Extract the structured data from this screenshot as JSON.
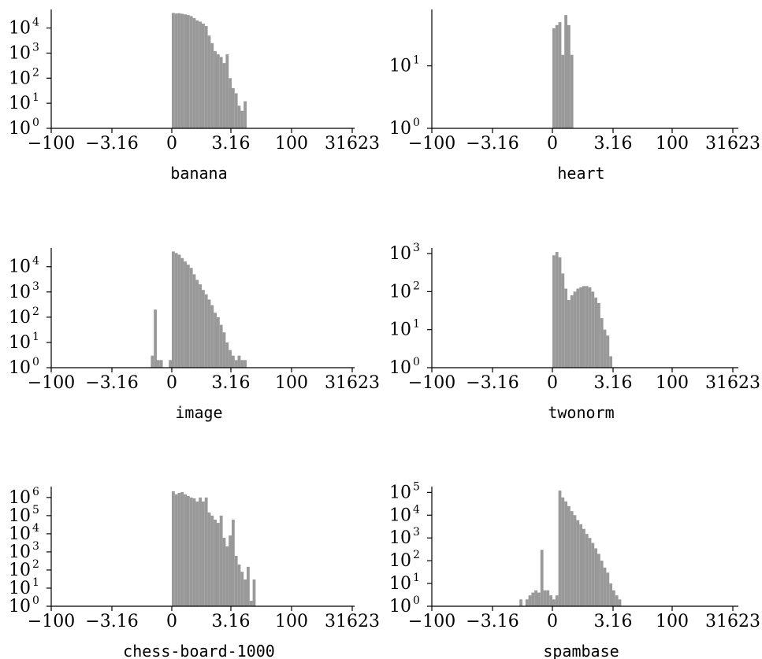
{
  "figure": {
    "bar_color": "#999999",
    "axis_color": "#000000"
  },
  "chart_data": [
    {
      "type": "bar",
      "xlabel": "banana",
      "yscale": "log",
      "xscale": "symlog",
      "xticks": [
        "−100",
        "−3.16",
        "0",
        "3.16",
        "100",
        "31623"
      ],
      "yticks": [
        {
          "exp": "0"
        },
        {
          "exp": "1"
        },
        {
          "exp": "2"
        },
        {
          "exp": "3"
        },
        {
          "exp": "4"
        }
      ],
      "ylim": [
        1,
        55000
      ],
      "bins": [
        {
          "x": 0,
          "count": 40000
        },
        {
          "x": 0.25,
          "count": 38000
        },
        {
          "x": 0.5,
          "count": 39000
        },
        {
          "x": 0.75,
          "count": 37000
        },
        {
          "x": 1,
          "count": 35000
        },
        {
          "x": 1.25,
          "count": 33000
        },
        {
          "x": 1.5,
          "count": 30000
        },
        {
          "x": 1.75,
          "count": 25000
        },
        {
          "x": 2,
          "count": 20000
        },
        {
          "x": 2.25,
          "count": 18000
        },
        {
          "x": 2.5,
          "count": 15000
        },
        {
          "x": 2.75,
          "count": 12000
        },
        {
          "x": 3,
          "count": 5000
        },
        {
          "x": 3.25,
          "count": 2500
        },
        {
          "x": 3.5,
          "count": 1200
        },
        {
          "x": 3.75,
          "count": 900
        },
        {
          "x": 4,
          "count": 700
        },
        {
          "x": 4.25,
          "count": 400
        },
        {
          "x": 4.5,
          "count": 900
        },
        {
          "x": 4.75,
          "count": 100
        },
        {
          "x": 5,
          "count": 40
        },
        {
          "x": 5.25,
          "count": 25
        },
        {
          "x": 5.5,
          "count": 8
        },
        {
          "x": 5.75,
          "count": 5
        },
        {
          "x": 6,
          "count": 12
        }
      ]
    },
    {
      "type": "bar",
      "xlabel": "heart",
      "yscale": "log",
      "xscale": "symlog",
      "xticks": [
        "−100",
        "−3.16",
        "0",
        "3.16",
        "100",
        "31623"
      ],
      "yticks": [
        {
          "exp": "0"
        },
        {
          "exp": "1"
        }
      ],
      "ylim": [
        1,
        80
      ],
      "bins": [
        {
          "x": 0,
          "count": 40
        },
        {
          "x": 0.25,
          "count": 45
        },
        {
          "x": 0.5,
          "count": 50
        },
        {
          "x": 0.75,
          "count": 15
        },
        {
          "x": 1,
          "count": 65
        },
        {
          "x": 1.25,
          "count": 45
        },
        {
          "x": 1.5,
          "count": 15
        }
      ]
    },
    {
      "type": "bar",
      "xlabel": "image",
      "yscale": "log",
      "xscale": "symlog",
      "xticks": [
        "−100",
        "−3.16",
        "0",
        "3.16",
        "100",
        "31623"
      ],
      "yticks": [
        {
          "exp": "0"
        },
        {
          "exp": "1"
        },
        {
          "exp": "2"
        },
        {
          "exp": "3"
        },
        {
          "exp": "4"
        }
      ],
      "ylim": [
        1,
        55000
      ],
      "bins": [
        {
          "x": -1.75,
          "count": 3
        },
        {
          "x": -1.5,
          "count": 200
        },
        {
          "x": -1.25,
          "count": 2
        },
        {
          "x": -1,
          "count": 2
        },
        {
          "x": -0.25,
          "count": 2
        },
        {
          "x": 0,
          "count": 40000
        },
        {
          "x": 0.25,
          "count": 35000
        },
        {
          "x": 0.5,
          "count": 30000
        },
        {
          "x": 0.75,
          "count": 22000
        },
        {
          "x": 1,
          "count": 16000
        },
        {
          "x": 1.25,
          "count": 12000
        },
        {
          "x": 1.5,
          "count": 9000
        },
        {
          "x": 1.75,
          "count": 5000
        },
        {
          "x": 2,
          "count": 3000
        },
        {
          "x": 2.25,
          "count": 2000
        },
        {
          "x": 2.5,
          "count": 1200
        },
        {
          "x": 2.75,
          "count": 800
        },
        {
          "x": 3,
          "count": 500
        },
        {
          "x": 3.25,
          "count": 300
        },
        {
          "x": 3.5,
          "count": 150
        },
        {
          "x": 3.75,
          "count": 100
        },
        {
          "x": 4,
          "count": 50
        },
        {
          "x": 4.25,
          "count": 25
        },
        {
          "x": 4.5,
          "count": 10
        },
        {
          "x": 4.75,
          "count": 5
        },
        {
          "x": 5,
          "count": 3
        },
        {
          "x": 5.25,
          "count": 2
        },
        {
          "x": 5.5,
          "count": 3
        },
        {
          "x": 5.75,
          "count": 2
        },
        {
          "x": 6,
          "count": 2
        }
      ]
    },
    {
      "type": "bar",
      "xlabel": "twonorm",
      "yscale": "log",
      "xscale": "symlog",
      "xticks": [
        "−100",
        "−3.16",
        "0",
        "3.16",
        "100",
        "31623"
      ],
      "yticks": [
        {
          "exp": "0"
        },
        {
          "exp": "1"
        },
        {
          "exp": "2"
        },
        {
          "exp": "3"
        }
      ],
      "ylim": [
        1,
        1400
      ],
      "bins": [
        {
          "x": 0,
          "count": 900
        },
        {
          "x": 0.25,
          "count": 1100
        },
        {
          "x": 0.5,
          "count": 800
        },
        {
          "x": 0.75,
          "count": 300
        },
        {
          "x": 1,
          "count": 120
        },
        {
          "x": 1.25,
          "count": 60
        },
        {
          "x": 1.5,
          "count": 80
        },
        {
          "x": 1.75,
          "count": 100
        },
        {
          "x": 2,
          "count": 120
        },
        {
          "x": 2.25,
          "count": 130
        },
        {
          "x": 2.5,
          "count": 140
        },
        {
          "x": 2.75,
          "count": 140
        },
        {
          "x": 3,
          "count": 130
        },
        {
          "x": 3.25,
          "count": 100
        },
        {
          "x": 3.5,
          "count": 70
        },
        {
          "x": 3.75,
          "count": 50
        },
        {
          "x": 4,
          "count": 20
        },
        {
          "x": 4.25,
          "count": 10
        },
        {
          "x": 4.5,
          "count": 7
        },
        {
          "x": 4.75,
          "count": 2
        }
      ]
    },
    {
      "type": "bar",
      "xlabel": "chess-board-1000",
      "yscale": "log",
      "xscale": "symlog",
      "xticks": [
        "−100",
        "−3.16",
        "0",
        "3.16",
        "100",
        "31623"
      ],
      "yticks": [
        {
          "exp": "0"
        },
        {
          "exp": "1"
        },
        {
          "exp": "2"
        },
        {
          "exp": "3"
        },
        {
          "exp": "4"
        },
        {
          "exp": "5"
        },
        {
          "exp": "6"
        }
      ],
      "ylim": [
        1,
        4000000
      ],
      "bins": [
        {
          "x": 0,
          "count": 2200000
        },
        {
          "x": 0.25,
          "count": 1500000
        },
        {
          "x": 0.5,
          "count": 1800000
        },
        {
          "x": 0.75,
          "count": 2000000
        },
        {
          "x": 1,
          "count": 1500000
        },
        {
          "x": 1.25,
          "count": 1200000
        },
        {
          "x": 1.5,
          "count": 1000000
        },
        {
          "x": 1.75,
          "count": 900000
        },
        {
          "x": 2,
          "count": 600000
        },
        {
          "x": 2.25,
          "count": 1000000
        },
        {
          "x": 2.5,
          "count": 600000
        },
        {
          "x": 2.75,
          "count": 1000000
        },
        {
          "x": 3,
          "count": 150000
        },
        {
          "x": 3.25,
          "count": 100000
        },
        {
          "x": 3.5,
          "count": 60000
        },
        {
          "x": 3.75,
          "count": 40000
        },
        {
          "x": 4,
          "count": 100000
        },
        {
          "x": 4.25,
          "count": 6000
        },
        {
          "x": 4.5,
          "count": 2000
        },
        {
          "x": 4.75,
          "count": 8000
        },
        {
          "x": 5,
          "count": 60000
        },
        {
          "x": 5.25,
          "count": 600
        },
        {
          "x": 5.5,
          "count": 200
        },
        {
          "x": 5.75,
          "count": 80
        },
        {
          "x": 6,
          "count": 30
        },
        {
          "x": 6.25,
          "count": 150
        },
        {
          "x": 6.5,
          "count": 2
        },
        {
          "x": 6.75,
          "count": 30
        }
      ]
    },
    {
      "type": "bar",
      "xlabel": "spambase",
      "yscale": "log",
      "xscale": "symlog",
      "xticks": [
        "−100",
        "−3.16",
        "0",
        "3.16",
        "100",
        "31623"
      ],
      "yticks": [
        {
          "exp": "0"
        },
        {
          "exp": "1"
        },
        {
          "exp": "2"
        },
        {
          "exp": "3"
        },
        {
          "exp": "4"
        },
        {
          "exp": "5"
        }
      ],
      "ylim": [
        1,
        180000
      ],
      "bins": [
        {
          "x": -2.75,
          "count": 2
        },
        {
          "x": -2.25,
          "count": 2
        },
        {
          "x": -2,
          "count": 3
        },
        {
          "x": -1.75,
          "count": 4
        },
        {
          "x": -1.5,
          "count": 5
        },
        {
          "x": -1.25,
          "count": 4
        },
        {
          "x": -1,
          "count": 300
        },
        {
          "x": -0.75,
          "count": 5
        },
        {
          "x": -0.5,
          "count": 5
        },
        {
          "x": -0.25,
          "count": 3
        },
        {
          "x": 0,
          "count": 2
        },
        {
          "x": 0.25,
          "count": 3
        },
        {
          "x": 0.5,
          "count": 120000
        },
        {
          "x": 0.75,
          "count": 60000
        },
        {
          "x": 1,
          "count": 40000
        },
        {
          "x": 1.25,
          "count": 25000
        },
        {
          "x": 1.5,
          "count": 15000
        },
        {
          "x": 1.75,
          "count": 10000
        },
        {
          "x": 2,
          "count": 6000
        },
        {
          "x": 2.25,
          "count": 4000
        },
        {
          "x": 2.5,
          "count": 2500
        },
        {
          "x": 2.75,
          "count": 1500
        },
        {
          "x": 3,
          "count": 1000
        },
        {
          "x": 3.25,
          "count": 600
        },
        {
          "x": 3.5,
          "count": 350
        },
        {
          "x": 3.75,
          "count": 200
        },
        {
          "x": 4,
          "count": 100
        },
        {
          "x": 4.25,
          "count": 50
        },
        {
          "x": 4.5,
          "count": 30
        },
        {
          "x": 4.75,
          "count": 10
        },
        {
          "x": 5,
          "count": 5
        },
        {
          "x": 5.25,
          "count": 3
        },
        {
          "x": 5.5,
          "count": 2
        }
      ]
    }
  ]
}
